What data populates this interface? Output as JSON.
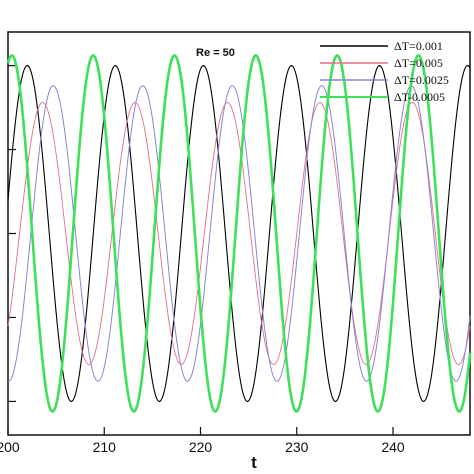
{
  "chart_data": {
    "type": "line",
    "title": "",
    "annotation": "Re = 50",
    "xlabel": "t",
    "ylabel": "",
    "xlim": [
      200,
      248
    ],
    "ylim": [
      -1.2,
      1.2
    ],
    "x_ticks": [
      200,
      210,
      220,
      230,
      240
    ],
    "x_tick_labels": [
      "200",
      "210",
      "220",
      "230",
      "240"
    ],
    "grid": false,
    "legend_position": "top-right",
    "series": [
      {
        "name": "ΔT=0.001",
        "color": "#000000",
        "period": 9.15,
        "first_peak": 202.0,
        "amplitude": 1.0
      },
      {
        "name": "ΔT=0.005",
        "color": "#e0708a",
        "period": 9.6,
        "first_peak": 203.6,
        "amplitude": 0.78
      },
      {
        "name": "ΔT=0.0025",
        "color": "#8a84d8",
        "period": 9.3,
        "first_peak": 204.7,
        "amplitude": 0.88
      },
      {
        "name": "ΔT-0.0005",
        "color": "#3ee05a",
        "period": 8.45,
        "first_peak": 200.4,
        "amplitude": 1.06
      }
    ]
  }
}
